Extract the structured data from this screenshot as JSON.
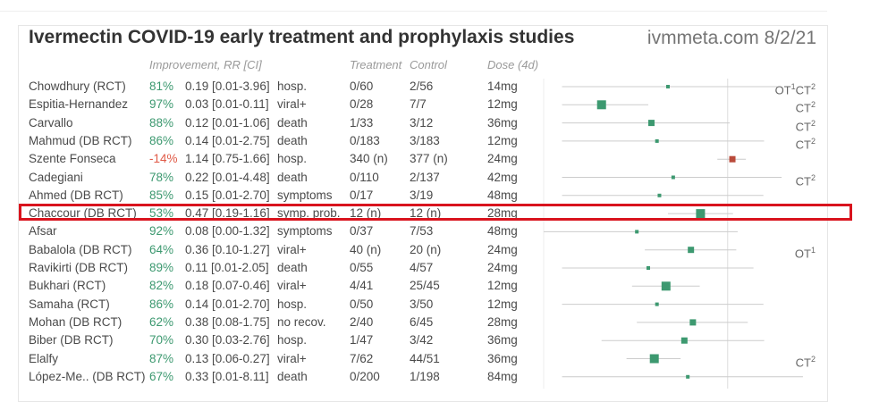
{
  "title": "Ivermectin COVID-19 early treatment and prophylaxis studies",
  "source": "ivmmeta.com 8/2/21",
  "headers": {
    "improvement": "Improvement, RR [CI]",
    "treatment": "Treatment",
    "control": "Control",
    "dose": "Dose (4d)"
  },
  "colors": {
    "positive": "#3d9970",
    "negative": "#b94a3a",
    "highlight": "#d9141e",
    "ci": "#cccccc"
  },
  "chart_data": {
    "type": "forest",
    "x": "RR",
    "reference_line": 1,
    "rows": [
      {
        "name": "Chowdhury (RCT)",
        "improvement": "81%",
        "rr_text": "0.19 [0.01-3.96]",
        "rr": 0.19,
        "lo": 0.01,
        "hi": 3.96,
        "outcome": "hosp.",
        "treatment": "0/60",
        "control": "2/56",
        "dose": "14mg",
        "notes": [
          [
            "OT",
            "1"
          ],
          [
            "CT",
            "2"
          ]
        ],
        "weight": 1
      },
      {
        "name": "Espitia-Hernandez",
        "improvement": "97%",
        "rr_text": "0.03 [0.01-0.11]",
        "rr": 0.03,
        "lo": 0.01,
        "hi": 0.11,
        "outcome": "viral+",
        "treatment": "0/28",
        "control": "7/7",
        "dose": "12mg",
        "notes": [
          [
            "CT",
            "2"
          ]
        ],
        "weight": 3
      },
      {
        "name": "Carvallo",
        "improvement": "88%",
        "rr_text": "0.12 [0.01-1.06]",
        "rr": 0.12,
        "lo": 0.01,
        "hi": 1.06,
        "outcome": "death",
        "treatment": "1/33",
        "control": "3/12",
        "dose": "36mg",
        "notes": [
          [
            "CT",
            "2"
          ]
        ],
        "weight": 2
      },
      {
        "name": "Mahmud (DB RCT)",
        "improvement": "86%",
        "rr_text": "0.14 [0.01-2.75]",
        "rr": 0.14,
        "lo": 0.01,
        "hi": 2.75,
        "outcome": "death",
        "treatment": "0/183",
        "control": "3/183",
        "dose": "12mg",
        "notes": [
          [
            "CT",
            "2"
          ]
        ],
        "weight": 1
      },
      {
        "name": "Szente Fonseca",
        "improvement": "-14%",
        "rr_text": "1.14 [0.75-1.66]",
        "rr": 1.14,
        "lo": 0.75,
        "hi": 1.66,
        "outcome": "hosp.",
        "treatment": "340 (n)",
        "control": "377 (n)",
        "dose": "24mg",
        "notes": [],
        "weight": 2
      },
      {
        "name": "Cadegiani",
        "improvement": "78%",
        "rr_text": "0.22 [0.01-4.48]",
        "rr": 0.22,
        "lo": 0.01,
        "hi": 4.48,
        "outcome": "death",
        "treatment": "0/110",
        "control": "2/137",
        "dose": "42mg",
        "notes": [
          [
            "CT",
            "2"
          ]
        ],
        "weight": 1
      },
      {
        "name": "Ahmed (DB RCT)",
        "improvement": "85%",
        "rr_text": "0.15 [0.01-2.70]",
        "rr": 0.15,
        "lo": 0.01,
        "hi": 2.7,
        "outcome": "symptoms",
        "treatment": "0/17",
        "control": "3/19",
        "dose": "48mg",
        "notes": [],
        "weight": 1
      },
      {
        "name": "Chaccour (DB RCT)",
        "improvement": "53%",
        "rr_text": "0.47 [0.19-1.16]",
        "rr": 0.47,
        "lo": 0.19,
        "hi": 1.16,
        "outcome": "symp. prob.",
        "treatment": "12 (n)",
        "control": "12 (n)",
        "dose": "28mg",
        "notes": [],
        "weight": 3,
        "highlighted": true
      },
      {
        "name": "Afsar",
        "improvement": "92%",
        "rr_text": "0.08 [0.00-1.32]",
        "rr": 0.08,
        "lo": 0.0,
        "hi": 1.32,
        "outcome": "symptoms",
        "treatment": "0/37",
        "control": "7/53",
        "dose": "48mg",
        "notes": [],
        "weight": 1
      },
      {
        "name": "Babalola (DB RCT)",
        "improvement": "64%",
        "rr_text": "0.36 [0.10-1.27]",
        "rr": 0.36,
        "lo": 0.1,
        "hi": 1.27,
        "outcome": "viral+",
        "treatment": "40 (n)",
        "control": "20 (n)",
        "dose": "24mg",
        "notes": [
          [
            "OT",
            "1"
          ]
        ],
        "weight": 2
      },
      {
        "name": "Ravikirti (DB RCT)",
        "improvement": "89%",
        "rr_text": "0.11 [0.01-2.05]",
        "rr": 0.11,
        "lo": 0.01,
        "hi": 2.05,
        "outcome": "death",
        "treatment": "0/55",
        "control": "4/57",
        "dose": "24mg",
        "notes": [],
        "weight": 1
      },
      {
        "name": "Bukhari (RCT)",
        "improvement": "82%",
        "rr_text": "0.18 [0.07-0.46]",
        "rr": 0.18,
        "lo": 0.07,
        "hi": 0.46,
        "outcome": "viral+",
        "treatment": "4/41",
        "control": "25/45",
        "dose": "12mg",
        "notes": [],
        "weight": 3
      },
      {
        "name": "Samaha (RCT)",
        "improvement": "86%",
        "rr_text": "0.14 [0.01-2.70]",
        "rr": 0.14,
        "lo": 0.01,
        "hi": 2.7,
        "outcome": "hosp.",
        "treatment": "0/50",
        "control": "3/50",
        "dose": "12mg",
        "notes": [],
        "weight": 1
      },
      {
        "name": "Mohan (DB RCT)",
        "improvement": "62%",
        "rr_text": "0.38 [0.08-1.75]",
        "rr": 0.38,
        "lo": 0.08,
        "hi": 1.75,
        "outcome": "no recov.",
        "treatment": "2/40",
        "control": "6/45",
        "dose": "28mg",
        "notes": [],
        "weight": 2
      },
      {
        "name": "Biber (DB RCT)",
        "improvement": "70%",
        "rr_text": "0.30 [0.03-2.76]",
        "rr": 0.3,
        "lo": 0.03,
        "hi": 2.76,
        "outcome": "hosp.",
        "treatment": "1/47",
        "control": "3/42",
        "dose": "36mg",
        "notes": [],
        "weight": 2
      },
      {
        "name": "Elalfy",
        "improvement": "87%",
        "rr_text": "0.13 [0.06-0.27]",
        "rr": 0.13,
        "lo": 0.06,
        "hi": 0.27,
        "outcome": "viral+",
        "treatment": "7/62",
        "control": "44/51",
        "dose": "36mg",
        "notes": [
          [
            "CT",
            "2"
          ]
        ],
        "weight": 3
      },
      {
        "name": "López-Me.. (DB RCT)",
        "improvement": "67%",
        "rr_text": "0.33 [0.01-8.11]",
        "rr": 0.33,
        "lo": 0.01,
        "hi": 8.11,
        "outcome": "death",
        "treatment": "0/200",
        "control": "1/198",
        "dose": "84mg",
        "notes": [],
        "weight": 1
      }
    ]
  }
}
